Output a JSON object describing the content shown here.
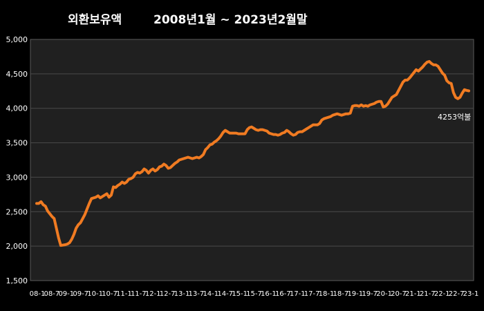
{
  "chart_data": {
    "type": "line",
    "title": "외환보유액",
    "subtitle": "2008년1월 ~ 2023년2월말",
    "xlabel": "",
    "ylabel": "",
    "ylim": [
      1500,
      5000
    ],
    "yticks": [
      "1,500",
      "2,000",
      "2,500",
      "3,000",
      "3,500",
      "4,000",
      "4,500",
      "5,000"
    ],
    "ytick_values": [
      1500,
      2000,
      2500,
      3000,
      3500,
      4000,
      4500,
      5000
    ],
    "xticks": [
      "08-1",
      "08-7",
      "09-1",
      "09-7",
      "10-1",
      "10-7",
      "11-1",
      "11-7",
      "12-1",
      "12-7",
      "13-1",
      "13-7",
      "14-1",
      "14-7",
      "15-1",
      "15-7",
      "16-1",
      "16-7",
      "17-1",
      "17-7",
      "18-1",
      "18-7",
      "19-1",
      "19-7",
      "20-1",
      "20-7",
      "21-1",
      "21-7",
      "22-1",
      "22-7",
      "23-1"
    ],
    "grid": true,
    "line_color": "#F07B22",
    "annotation": "4253억불",
    "series": [
      {
        "values": [
          2620,
          2620,
          2645,
          2600,
          2580,
          2510,
          2470,
          2430,
          2400,
          2260,
          2120,
          2010,
          2015,
          2020,
          2030,
          2050,
          2100,
          2170,
          2260,
          2310,
          2340,
          2400,
          2460,
          2540,
          2620,
          2690,
          2700,
          2710,
          2730,
          2700,
          2720,
          2740,
          2760,
          2710,
          2740,
          2860,
          2850,
          2880,
          2900,
          2930,
          2910,
          2930,
          2970,
          2980,
          3000,
          3050,
          3070,
          3060,
          3080,
          3120,
          3100,
          3060,
          3100,
          3120,
          3090,
          3110,
          3150,
          3160,
          3190,
          3170,
          3130,
          3140,
          3170,
          3200,
          3220,
          3250,
          3260,
          3270,
          3280,
          3290,
          3280,
          3270,
          3280,
          3290,
          3280,
          3300,
          3330,
          3400,
          3430,
          3470,
          3480,
          3510,
          3530,
          3560,
          3600,
          3650,
          3680,
          3660,
          3640,
          3640,
          3640,
          3640,
          3630,
          3630,
          3630,
          3630,
          3690,
          3720,
          3730,
          3710,
          3690,
          3680,
          3690,
          3690,
          3680,
          3670,
          3640,
          3630,
          3620,
          3620,
          3610,
          3620,
          3640,
          3650,
          3680,
          3660,
          3630,
          3610,
          3620,
          3650,
          3660,
          3660,
          3680,
          3700,
          3720,
          3740,
          3760,
          3760,
          3760,
          3780,
          3830,
          3850,
          3860,
          3870,
          3880,
          3900,
          3910,
          3920,
          3910,
          3900,
          3910,
          3920,
          3920,
          3930,
          4030,
          4040,
          4040,
          4030,
          4050,
          4030,
          4040,
          4030,
          4050,
          4060,
          4070,
          4090,
          4100,
          4100,
          4020,
          4030,
          4060,
          4110,
          4160,
          4180,
          4200,
          4260,
          4320,
          4380,
          4410,
          4410,
          4440,
          4480,
          4520,
          4560,
          4540,
          4570,
          4600,
          4640,
          4670,
          4680,
          4650,
          4630,
          4630,
          4610,
          4560,
          4510,
          4480,
          4400,
          4370,
          4360,
          4230,
          4160,
          4140,
          4160,
          4220,
          4270,
          4260,
          4253
        ]
      }
    ]
  }
}
